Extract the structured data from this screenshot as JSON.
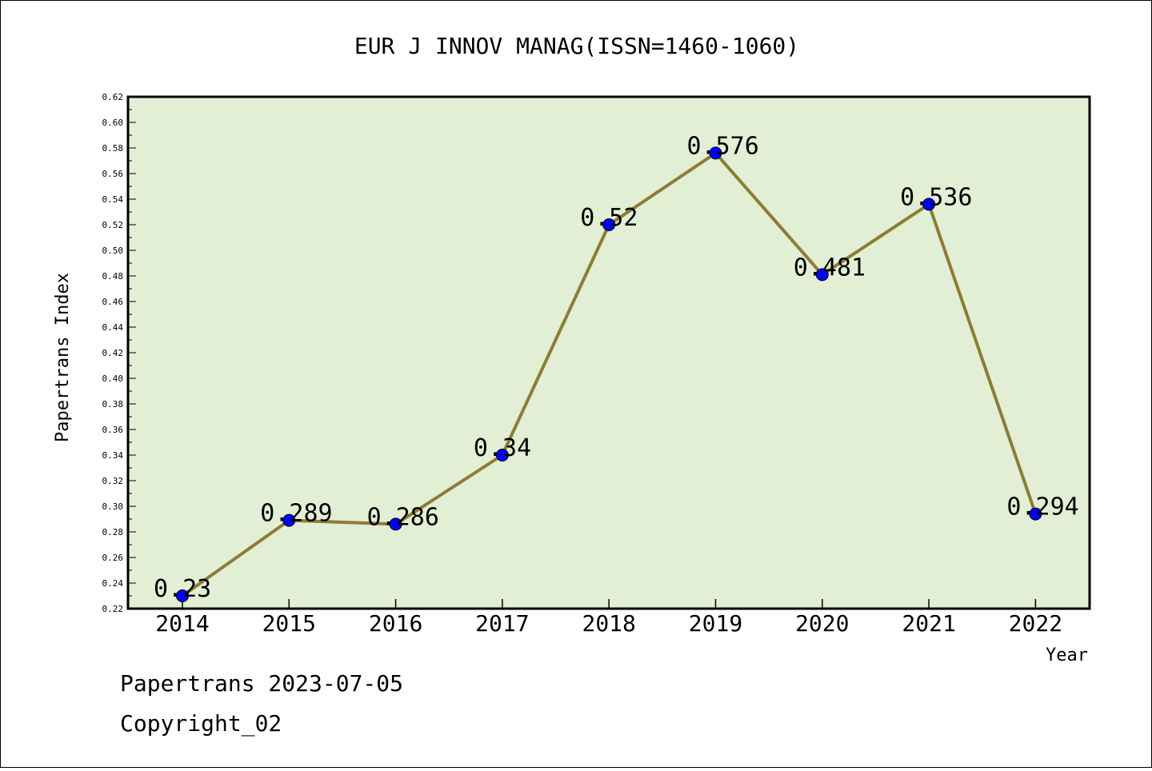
{
  "chart_data": {
    "type": "line",
    "title": "EUR J INNOV MANAG(ISSN=1460-1060)",
    "xlabel": "Year",
    "ylabel": "Papertrans Index",
    "x": [
      "2014",
      "2015",
      "2016",
      "2017",
      "2018",
      "2019",
      "2020",
      "2021",
      "2022"
    ],
    "series": [
      {
        "values": [
          0.23,
          0.289,
          0.286,
          0.34,
          0.52,
          0.576,
          0.481,
          0.536,
          0.294
        ],
        "data_labels": [
          "0.23",
          "0.289",
          "0.286",
          "0.34",
          "0.52",
          "0.576",
          "0.481",
          "0.536",
          "0.294"
        ]
      }
    ],
    "ylim": [
      0.22,
      0.62
    ],
    "yticks": [
      "0.22",
      "0.24",
      "0.26",
      "0.28",
      "0.30",
      "0.32",
      "0.34",
      "0.36",
      "0.38",
      "0.40",
      "0.42",
      "0.44",
      "0.46",
      "0.48",
      "0.50",
      "0.52",
      "0.54",
      "0.56",
      "0.58",
      "0.60",
      "0.62"
    ],
    "grid": false,
    "colors": {
      "plot_background": "#e2efd5",
      "line": "#8b7d35",
      "marker": "#0000ff"
    }
  },
  "footer": {
    "line1": "Papertrans 2023-07-05",
    "line2": "Copyright_02"
  }
}
